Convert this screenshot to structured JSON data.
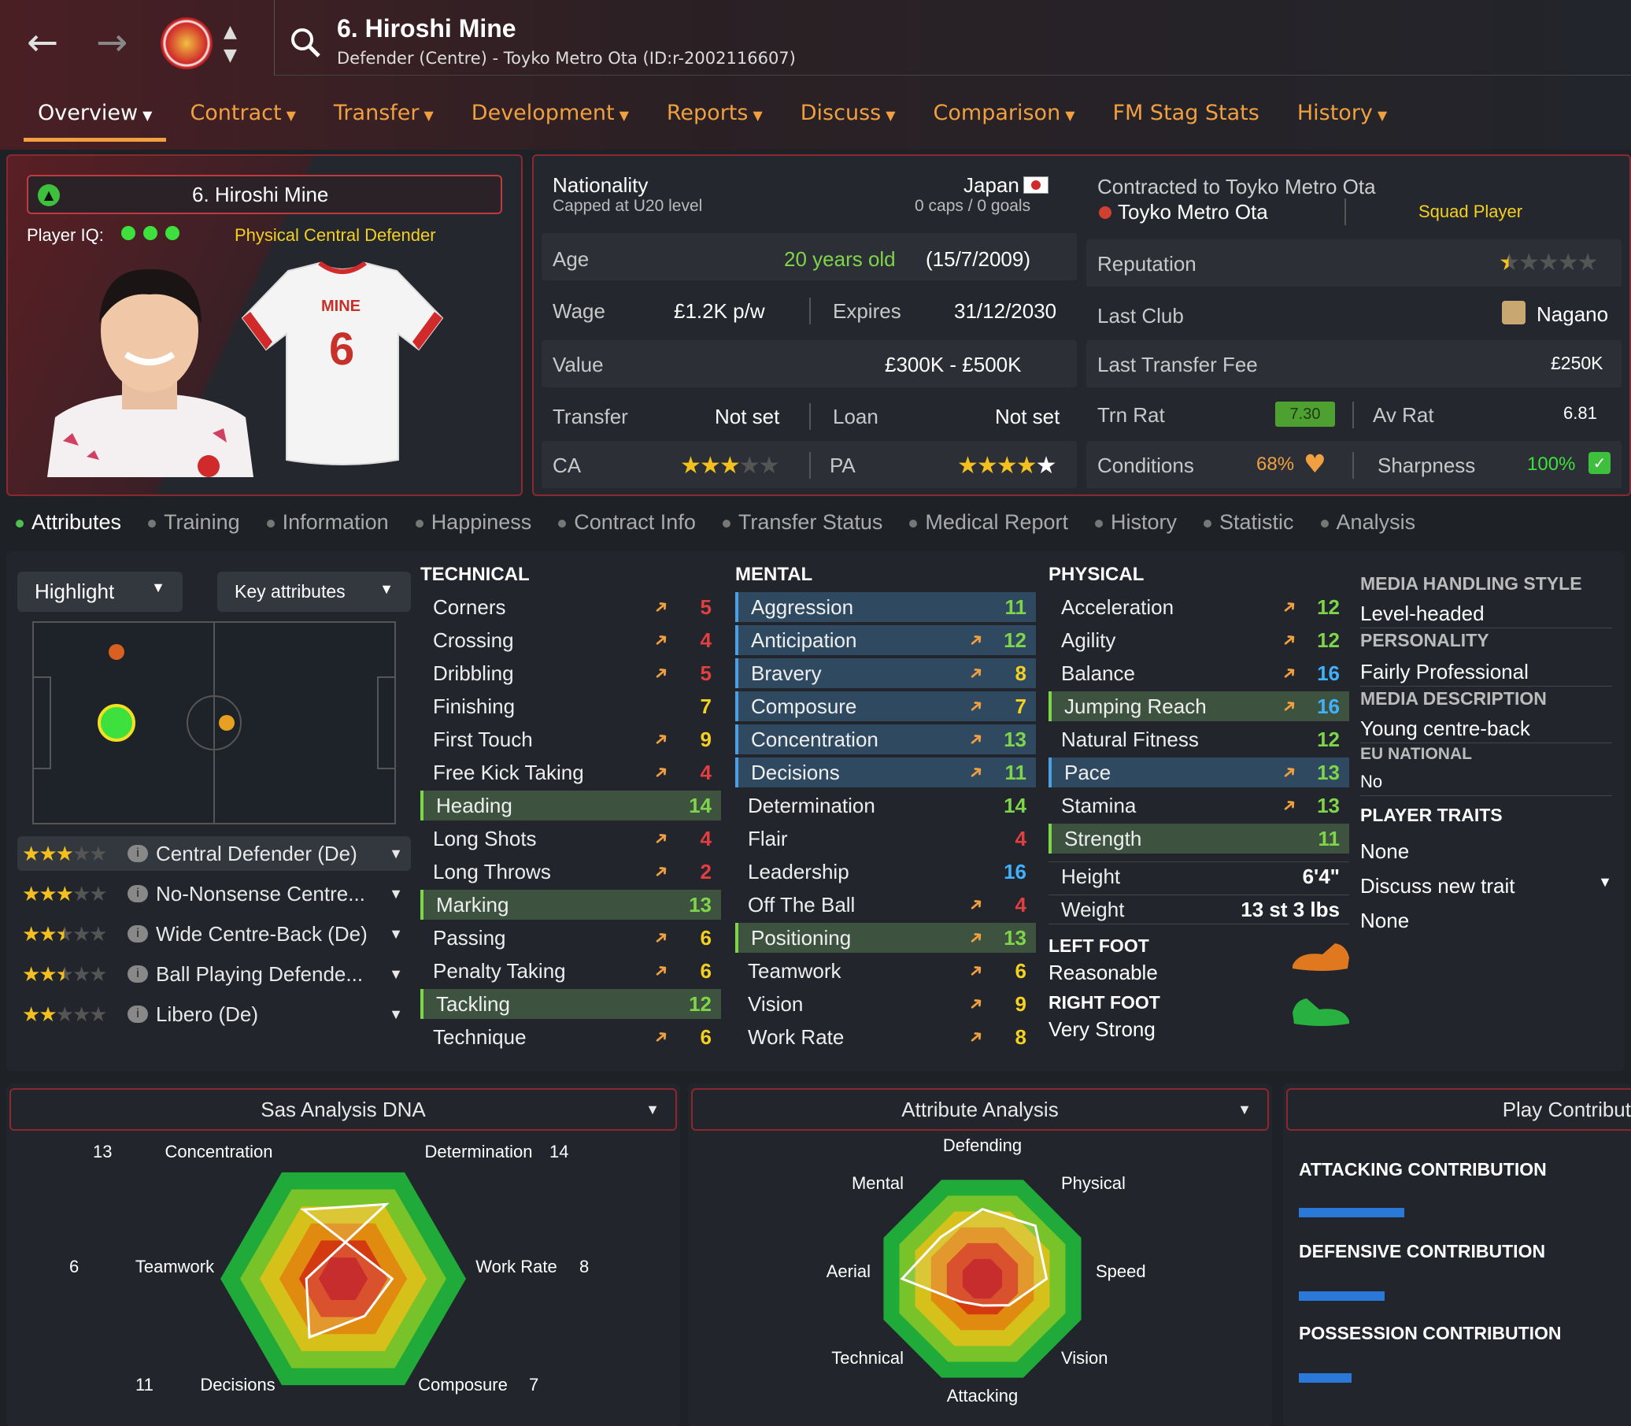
{
  "header": {
    "title": "6. Hiroshi Mine",
    "subtitle": "Defender (Centre) - Toyko Metro Ota (ID:r-2002116607)"
  },
  "tabs": [
    {
      "label": "Overview"
    },
    {
      "label": "Contract"
    },
    {
      "label": "Transfer"
    },
    {
      "label": "Development"
    },
    {
      "label": "Reports"
    },
    {
      "label": "Discuss"
    },
    {
      "label": "Comparison"
    },
    {
      "label": "FM Stag Stats"
    },
    {
      "label": "History"
    }
  ],
  "profile": {
    "name": "6. Hiroshi Mine",
    "iq_label": "Player IQ:",
    "role_label": "Physical Central Defender",
    "shirt_name": "MINE",
    "shirt_number": "6"
  },
  "details": {
    "nationality_label": "Nationality",
    "nationality": "Japan",
    "capped": "Capped at U20 level",
    "caps": "0 caps / 0 goals",
    "age_label": "Age",
    "age": "20 years old",
    "dob": "(15/7/2009)",
    "wage_label": "Wage",
    "wage": "£1.2K p/w",
    "expires_label": "Expires",
    "expires": "31/12/2030",
    "value_label": "Value",
    "value": "£300K - £500K",
    "transfer_label": "Transfer",
    "transfer": "Not set",
    "loan_label": "Loan",
    "loan": "Not set",
    "ca_label": "CA",
    "ca_stars": 3,
    "pa_label": "PA",
    "pa_stars": 5
  },
  "club": {
    "contracted": "Contracted to Toyko Metro Ota",
    "club_name": "Toyko Metro Ota",
    "squad_status": "Squad Player",
    "reputation_label": "Reputation",
    "reputation_stars": 0.5,
    "last_club_label": "Last Club",
    "last_club": "Nagano",
    "fee_label": "Last Transfer Fee",
    "fee": "£250K",
    "trn_label": "Trn Rat",
    "trn": "7.30",
    "av_label": "Av Rat",
    "av": "6.81",
    "conditions_label": "Conditions",
    "conditions": "68%",
    "sharpness_label": "Sharpness",
    "sharpness": "100%"
  },
  "subtabs": [
    "Attributes",
    "Training",
    "Information",
    "Happiness",
    "Contract Info",
    "Transfer Status",
    "Medical Report",
    "History",
    "Statistic",
    "Analysis"
  ],
  "controls": {
    "highlight": "Highlight",
    "key_attributes": "Key attributes"
  },
  "roles": [
    {
      "stars": 3,
      "name": "Central Defender (De)"
    },
    {
      "stars": 3,
      "name": "No-Nonsense Centre..."
    },
    {
      "stars": 2.5,
      "name": "Wide Centre-Back (De)"
    },
    {
      "stars": 2.5,
      "name": "Ball Playing Defende..."
    },
    {
      "stars": 2,
      "name": "Libero (De)"
    }
  ],
  "technical": {
    "title": "TECHNICAL",
    "rows": [
      {
        "name": "Corners",
        "value": "5",
        "hl": ""
      },
      {
        "name": "Crossing",
        "value": "4",
        "hl": ""
      },
      {
        "name": "Dribbling",
        "value": "5",
        "hl": ""
      },
      {
        "name": "Finishing",
        "value": "7",
        "hl": ""
      },
      {
        "name": "First Touch",
        "value": "9",
        "hl": ""
      },
      {
        "name": "Free Kick Taking",
        "value": "4",
        "hl": ""
      },
      {
        "name": "Heading",
        "value": "14",
        "hl": "g"
      },
      {
        "name": "Long Shots",
        "value": "4",
        "hl": ""
      },
      {
        "name": "Long Throws",
        "value": "2",
        "hl": ""
      },
      {
        "name": "Marking",
        "value": "13",
        "hl": "g"
      },
      {
        "name": "Passing",
        "value": "6",
        "hl": ""
      },
      {
        "name": "Penalty Taking",
        "value": "6",
        "hl": ""
      },
      {
        "name": "Tackling",
        "value": "12",
        "hl": "g"
      },
      {
        "name": "Technique",
        "value": "6",
        "hl": ""
      }
    ]
  },
  "mental": {
    "title": "MENTAL",
    "rows": [
      {
        "name": "Aggression",
        "value": "11",
        "hl": "b"
      },
      {
        "name": "Anticipation",
        "value": "12",
        "hl": "b"
      },
      {
        "name": "Bravery",
        "value": "8",
        "hl": "b"
      },
      {
        "name": "Composure",
        "value": "7",
        "hl": "b"
      },
      {
        "name": "Concentration",
        "value": "13",
        "hl": "b"
      },
      {
        "name": "Decisions",
        "value": "11",
        "hl": "b"
      },
      {
        "name": "Determination",
        "value": "14",
        "hl": ""
      },
      {
        "name": "Flair",
        "value": "4",
        "hl": ""
      },
      {
        "name": "Leadership",
        "value": "16",
        "hl": ""
      },
      {
        "name": "Off The Ball",
        "value": "4",
        "hl": ""
      },
      {
        "name": "Positioning",
        "value": "13",
        "hl": "g"
      },
      {
        "name": "Teamwork",
        "value": "6",
        "hl": ""
      },
      {
        "name": "Vision",
        "value": "9",
        "hl": ""
      },
      {
        "name": "Work Rate",
        "value": "8",
        "hl": ""
      }
    ]
  },
  "physical": {
    "title": "PHYSICAL",
    "rows": [
      {
        "name": "Acceleration",
        "value": "12",
        "hl": ""
      },
      {
        "name": "Agility",
        "value": "12",
        "hl": ""
      },
      {
        "name": "Balance",
        "value": "16",
        "hl": ""
      },
      {
        "name": "Jumping Reach",
        "value": "16",
        "hl": "g"
      },
      {
        "name": "Natural Fitness",
        "value": "12",
        "hl": ""
      },
      {
        "name": "Pace",
        "value": "13",
        "hl": "b"
      },
      {
        "name": "Stamina",
        "value": "13",
        "hl": ""
      },
      {
        "name": "Strength",
        "value": "11",
        "hl": "g"
      }
    ],
    "height_label": "Height",
    "height": "6'4\"",
    "weight_label": "Weight",
    "weight": "13 st 3 lbs",
    "left_foot_label": "LEFT FOOT",
    "left_foot": "Reasonable",
    "right_foot_label": "RIGHT FOOT",
    "right_foot": "Very Strong"
  },
  "side_info": {
    "media_style_label": "MEDIA HANDLING STYLE",
    "media_style": "Level-headed",
    "personality_label": "PERSONALITY",
    "personality": "Fairly Professional",
    "media_desc_label": "MEDIA DESCRIPTION",
    "media_desc": "Young centre-back",
    "eu_label": "EU NATIONAL",
    "eu": "No",
    "traits_label": "PLAYER TRAITS",
    "traits": "None",
    "discuss": "Discuss new trait",
    "discuss_value": "None"
  },
  "dna_panel": {
    "title": "Sas Analysis DNA",
    "labels": {
      "concentration": "Concentration",
      "concentration_val": "13",
      "determination": "Determination",
      "determination_val": "14",
      "teamwork": "Teamwork",
      "teamwork_val": "6",
      "work_rate": "Work Rate",
      "work_rate_val": "8",
      "decisions": "Decisions",
      "decisions_val": "11",
      "composure": "Composure",
      "composure_val": "7"
    }
  },
  "analysis_panel": {
    "title": "Attribute Analysis",
    "labels": [
      "Defending",
      "Physical",
      "Speed",
      "Vision",
      "Attacking",
      "Technical",
      "Aerial",
      "Mental"
    ]
  },
  "contribution_panel": {
    "title": "Play Contribut",
    "attacking": "ATTACKING CONTRIBUTION",
    "defensive": "DEFENSIVE CONTRIBUTION",
    "possession": "POSSESSION CONTRIBUTION",
    "attacking_level": 0.32,
    "defensive_level": 0.26,
    "possession_level": 0.16
  },
  "chart_data": [
    {
      "type": "radar",
      "title": "Sas Analysis DNA",
      "categories": [
        "Concentration",
        "Work Rate",
        "Composure",
        "Decisions",
        "Teamwork",
        "Determination"
      ],
      "values": [
        13,
        8,
        7,
        11,
        6,
        14
      ],
      "max": 20
    },
    {
      "type": "radar",
      "title": "Attribute Analysis",
      "categories": [
        "Defending",
        "Physical",
        "Speed",
        "Vision",
        "Attacking",
        "Technical",
        "Aerial",
        "Mental"
      ],
      "values": [
        13,
        14,
        12,
        7,
        5,
        6,
        15,
        11
      ],
      "max": 20
    }
  ]
}
